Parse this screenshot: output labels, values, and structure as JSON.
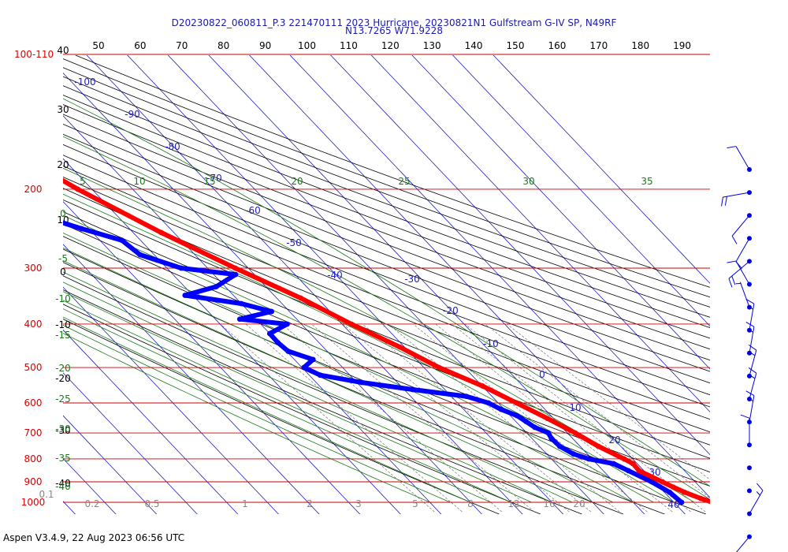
{
  "title_line1": "D20230822_060811_P.3 221470111 2023 Hurricane, 20230821N1 Gulfstream G-IV SP, N49RF",
  "title_line2": "N13.7265 W71.9228",
  "footer": "Aspen V3.4.9, 22 Aug 2023  06:56 UTC",
  "colors": {
    "temperature": "#ff0000",
    "dewpoint": "#0000ff",
    "isobar": "#cc0000",
    "isotherm": "#0000aa",
    "dry_adiabat": "#000000",
    "moist_adiabat": "#006400",
    "mixing_ratio": "#555555",
    "wind_barb": "#0000dd"
  },
  "chart_data": {
    "type": "skew-t",
    "pressure_axis": {
      "scale": "log",
      "tick_labels": [
        "100-110",
        "200",
        "300",
        "400",
        "500",
        "600",
        "700",
        "800",
        "900",
        "1000"
      ],
      "values_hPa": [
        100,
        200,
        300,
        400,
        500,
        600,
        700,
        800,
        900,
        1000
      ]
    },
    "height_axis": {
      "unit": "km",
      "labels": [
        "40",
        "30",
        "20",
        "10",
        "0",
        "-10",
        "-20",
        "-30",
        "-40"
      ]
    },
    "top_axis": {
      "labels": [
        "50",
        "60",
        "70",
        "80",
        "90",
        "100",
        "110",
        "120",
        "130",
        "140",
        "150",
        "160",
        "170",
        "180",
        "190"
      ]
    },
    "isotherm_labels": [
      "-100",
      "-90",
      "-80",
      "-70",
      "-60",
      "-50",
      "-40",
      "-30",
      "-20",
      "-10",
      "0",
      "10",
      "20",
      "30",
      "40"
    ],
    "moist_adiabat_labels": [
      "5",
      "10",
      "15",
      "20",
      "25",
      "30",
      "35"
    ],
    "moist_adiabat_left_labels": [
      "0",
      "-5",
      "-10",
      "-15",
      "-20",
      "-25",
      "-30",
      "-35",
      "-40"
    ],
    "mixing_ratio_labels": [
      "0.1",
      "0.2",
      "0.5",
      "1",
      "2",
      "3",
      "5",
      "8",
      "12",
      "16",
      "20"
    ],
    "isotherm_range_C": [
      -100,
      40
    ],
    "temperature_profile": [
      {
        "p": 1000,
        "t": 29.5
      },
      {
        "p": 980,
        "t": 27.5
      },
      {
        "p": 950,
        "t": 25.0
      },
      {
        "p": 925,
        "t": 23.4
      },
      {
        "p": 900,
        "t": 21.9
      },
      {
        "p": 850,
        "t": 18.8
      },
      {
        "p": 820,
        "t": 19.0
      },
      {
        "p": 800,
        "t": 17.9
      },
      {
        "p": 750,
        "t": 14.5
      },
      {
        "p": 700,
        "t": 11.9
      },
      {
        "p": 650,
        "t": 8.5
      },
      {
        "p": 600,
        "t": 4.5
      },
      {
        "p": 550,
        "t": 0.1
      },
      {
        "p": 500,
        "t": -6.3
      },
      {
        "p": 450,
        "t": -11.2
      },
      {
        "p": 400,
        "t": -17.7
      },
      {
        "p": 350,
        "t": -24.1
      },
      {
        "p": 300,
        "t": -33.2
      },
      {
        "p": 250,
        "t": -43.1
      },
      {
        "p": 200,
        "t": -53.5
      },
      {
        "p": 175,
        "t": -58.4
      }
    ],
    "dewpoint_profile": [
      {
        "p": 1000,
        "td": 21.9
      },
      {
        "p": 950,
        "td": 21.3
      },
      {
        "p": 900,
        "td": 19.3
      },
      {
        "p": 850,
        "td": 16.2
      },
      {
        "p": 820,
        "td": 14.2
      },
      {
        "p": 800,
        "td": 9.2
      },
      {
        "p": 780,
        "td": 6.6
      },
      {
        "p": 750,
        "td": 5.0
      },
      {
        "p": 720,
        "td": 4.8
      },
      {
        "p": 700,
        "td": 5.3
      },
      {
        "p": 680,
        "td": 3.3
      },
      {
        "p": 660,
        "td": 2.5
      },
      {
        "p": 640,
        "td": 1.6
      },
      {
        "p": 620,
        "td": -0.8
      },
      {
        "p": 600,
        "td": -2.4
      },
      {
        "p": 580,
        "td": -6.3
      },
      {
        "p": 560,
        "td": -17.9
      },
      {
        "p": 540,
        "td": -28.8
      },
      {
        "p": 520,
        "td": -37.3
      },
      {
        "p": 500,
        "td": -39.5
      },
      {
        "p": 480,
        "td": -35.4
      },
      {
        "p": 460,
        "td": -39.6
      },
      {
        "p": 440,
        "td": -40.1
      },
      {
        "p": 420,
        "td": -40.0
      },
      {
        "p": 400,
        "td": -33.5
      },
      {
        "p": 390,
        "td": -44.0
      },
      {
        "p": 375,
        "td": -34.4
      },
      {
        "p": 360,
        "td": -40.0
      },
      {
        "p": 345,
        "td": -51.9
      },
      {
        "p": 330,
        "td": -42.2
      },
      {
        "p": 310,
        "td": -34.6
      },
      {
        "p": 300,
        "td": -46.5
      },
      {
        "p": 280,
        "td": -53.5
      },
      {
        "p": 260,
        "td": -54.6
      },
      {
        "p": 245,
        "td": -61.8
      },
      {
        "p": 230,
        "td": -68.4
      }
    ],
    "top_markers": [
      {
        "series": "dewpoint",
        "p": 175,
        "value": -95
      },
      {
        "series": "temperature",
        "p": 175,
        "value": -80
      }
    ],
    "wind_barbs": [
      {
        "level": 1,
        "dir": 330,
        "kt": 10
      },
      {
        "level": 2,
        "dir": 260,
        "kt": 20
      },
      {
        "level": 3,
        "dir": 220,
        "kt": 10
      },
      {
        "level": 4,
        "dir": 210,
        "kt": 10
      },
      {
        "level": 5,
        "dir": 230,
        "kt": 20
      },
      {
        "level": 6,
        "dir": 330,
        "kt": 10
      },
      {
        "level": 7,
        "dir": 340,
        "kt": 5
      },
      {
        "level": 8,
        "dir": 10,
        "kt": 15
      },
      {
        "level": 9,
        "dir": 10,
        "kt": 15
      },
      {
        "level": 10,
        "dir": 15,
        "kt": 15
      },
      {
        "level": 11,
        "dir": 15,
        "kt": 15
      },
      {
        "level": 12,
        "dir": 10,
        "kt": 15
      },
      {
        "level": 13,
        "dir": 0,
        "kt": 10
      },
      {
        "level": 14,
        "dir": 0,
        "kt": 0
      },
      {
        "level": 15,
        "dir": 0,
        "kt": 0
      },
      {
        "level": 16,
        "dir": 30,
        "kt": 15
      },
      {
        "level": 17,
        "dir": 220,
        "kt": 15
      },
      {
        "level": 18,
        "dir": 0,
        "kt": 0
      }
    ]
  }
}
